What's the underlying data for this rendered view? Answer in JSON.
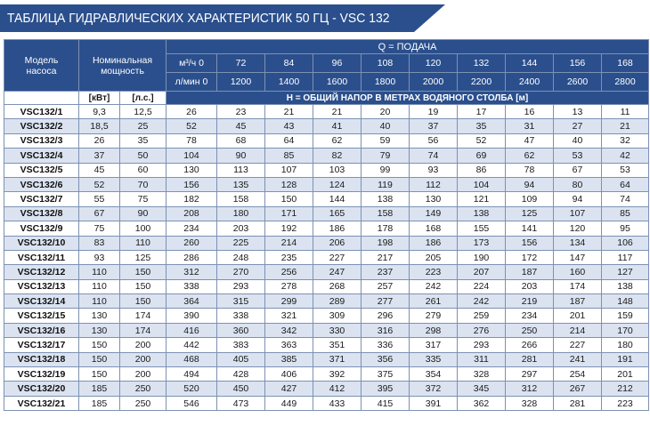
{
  "title": "ТАБЛИЦА ГИДРАВЛИЧЕСКИХ ХАРАКТЕРИСТИК 50 ГЦ - VSC 132",
  "header": {
    "model_label": "Модель насоса",
    "power_label": "Номинальная мощность",
    "flow_label": "Q = ПОДАЧА",
    "flow_unit_m3": "м³/ч 0",
    "flow_unit_lmin": "л/мин 0",
    "kw_unit": "[кВт]",
    "hp_unit": "[л.с.]",
    "head_label": "H = ОБЩИЙ НАПОР В МЕТРАХ ВОДЯНОГО СТОЛБА [м]",
    "flow_m3": [
      "72",
      "84",
      "96",
      "108",
      "120",
      "132",
      "144",
      "156",
      "168"
    ],
    "flow_lmin": [
      "1200",
      "1400",
      "1600",
      "1800",
      "2000",
      "2200",
      "2400",
      "2600",
      "2800"
    ]
  },
  "rows": [
    [
      "VSC132/1",
      "9,3",
      "12,5",
      "26",
      "23",
      "21",
      "21",
      "20",
      "19",
      "17",
      "16",
      "13",
      "11"
    ],
    [
      "VSC132/2",
      "18,5",
      "25",
      "52",
      "45",
      "43",
      "41",
      "40",
      "37",
      "35",
      "31",
      "27",
      "21"
    ],
    [
      "VSC132/3",
      "26",
      "35",
      "78",
      "68",
      "64",
      "62",
      "59",
      "56",
      "52",
      "47",
      "40",
      "32"
    ],
    [
      "VSC132/4",
      "37",
      "50",
      "104",
      "90",
      "85",
      "82",
      "79",
      "74",
      "69",
      "62",
      "53",
      "42"
    ],
    [
      "VSC132/5",
      "45",
      "60",
      "130",
      "113",
      "107",
      "103",
      "99",
      "93",
      "86",
      "78",
      "67",
      "53"
    ],
    [
      "VSC132/6",
      "52",
      "70",
      "156",
      "135",
      "128",
      "124",
      "119",
      "112",
      "104",
      "94",
      "80",
      "64"
    ],
    [
      "VSC132/7",
      "55",
      "75",
      "182",
      "158",
      "150",
      "144",
      "138",
      "130",
      "121",
      "109",
      "94",
      "74"
    ],
    [
      "VSC132/8",
      "67",
      "90",
      "208",
      "180",
      "171",
      "165",
      "158",
      "149",
      "138",
      "125",
      "107",
      "85"
    ],
    [
      "VSC132/9",
      "75",
      "100",
      "234",
      "203",
      "192",
      "186",
      "178",
      "168",
      "155",
      "141",
      "120",
      "95"
    ],
    [
      "VSC132/10",
      "83",
      "110",
      "260",
      "225",
      "214",
      "206",
      "198",
      "186",
      "173",
      "156",
      "134",
      "106"
    ],
    [
      "VSC132/11",
      "93",
      "125",
      "286",
      "248",
      "235",
      "227",
      "217",
      "205",
      "190",
      "172",
      "147",
      "117"
    ],
    [
      "VSC132/12",
      "110",
      "150",
      "312",
      "270",
      "256",
      "247",
      "237",
      "223",
      "207",
      "187",
      "160",
      "127"
    ],
    [
      "VSC132/13",
      "110",
      "150",
      "338",
      "293",
      "278",
      "268",
      "257",
      "242",
      "224",
      "203",
      "174",
      "138"
    ],
    [
      "VSC132/14",
      "110",
      "150",
      "364",
      "315",
      "299",
      "289",
      "277",
      "261",
      "242",
      "219",
      "187",
      "148"
    ],
    [
      "VSC132/15",
      "130",
      "174",
      "390",
      "338",
      "321",
      "309",
      "296",
      "279",
      "259",
      "234",
      "201",
      "159"
    ],
    [
      "VSC132/16",
      "130",
      "174",
      "416",
      "360",
      "342",
      "330",
      "316",
      "298",
      "276",
      "250",
      "214",
      "170"
    ],
    [
      "VSC132/17",
      "150",
      "200",
      "442",
      "383",
      "363",
      "351",
      "336",
      "317",
      "293",
      "266",
      "227",
      "180"
    ],
    [
      "VSC132/18",
      "150",
      "200",
      "468",
      "405",
      "385",
      "371",
      "356",
      "335",
      "311",
      "281",
      "241",
      "191"
    ],
    [
      "VSC132/19",
      "150",
      "200",
      "494",
      "428",
      "406",
      "392",
      "375",
      "354",
      "328",
      "297",
      "254",
      "201"
    ],
    [
      "VSC132/20",
      "185",
      "250",
      "520",
      "450",
      "427",
      "412",
      "395",
      "372",
      "345",
      "312",
      "267",
      "212"
    ],
    [
      "VSC132/21",
      "185",
      "250",
      "546",
      "473",
      "449",
      "433",
      "415",
      "391",
      "362",
      "328",
      "281",
      "223"
    ]
  ]
}
